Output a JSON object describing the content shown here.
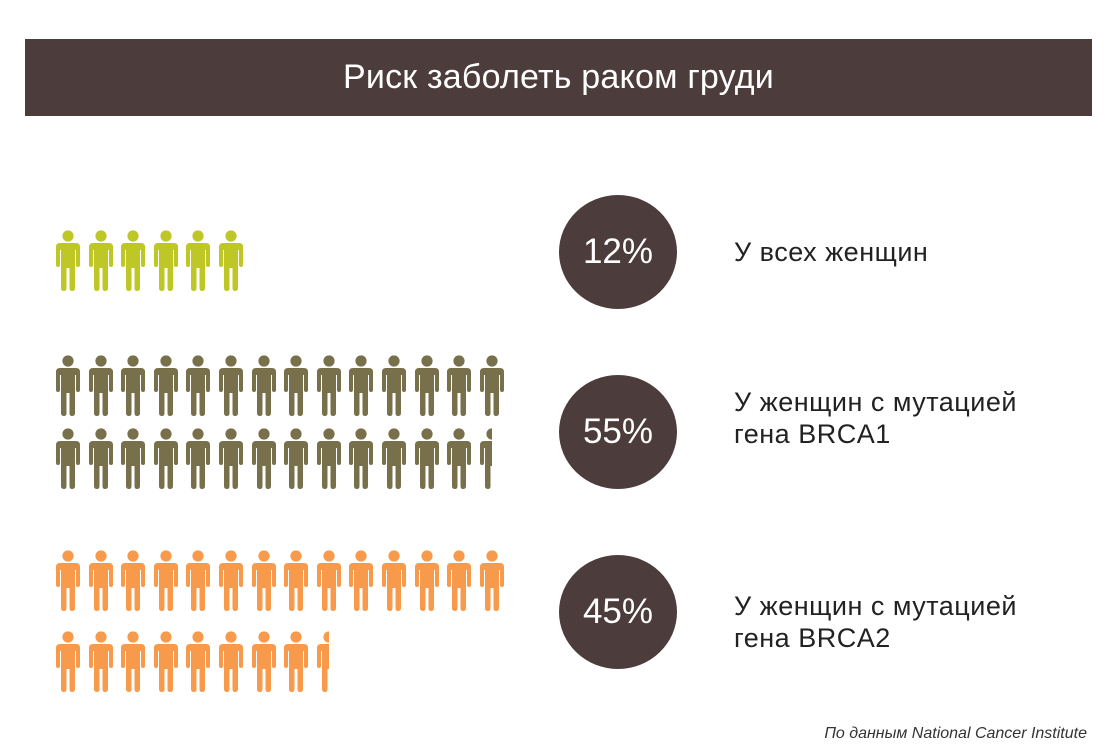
{
  "title": "Риск заболеть раком груди",
  "source": "По данным National Cancer Institute",
  "chart_data": {
    "type": "pictogram",
    "title": "Риск заболеть раком груди",
    "unit": "%",
    "icon": "person-icon",
    "icons_per_percent": 0.5,
    "series": [
      {
        "value_label": "12%",
        "value": 12,
        "label_lines": [
          "У всех женщин"
        ],
        "color": "#bfc727"
      },
      {
        "value_label": "55%",
        "value": 55,
        "label_lines": [
          "У женщин с мутацией",
          "гена BRCA1"
        ],
        "color": "#78704a"
      },
      {
        "value_label": "45%",
        "value": 45,
        "label_lines": [
          "У женщин с мутацией",
          "гена BRCA2"
        ],
        "color": "#f79a4c"
      }
    ]
  }
}
